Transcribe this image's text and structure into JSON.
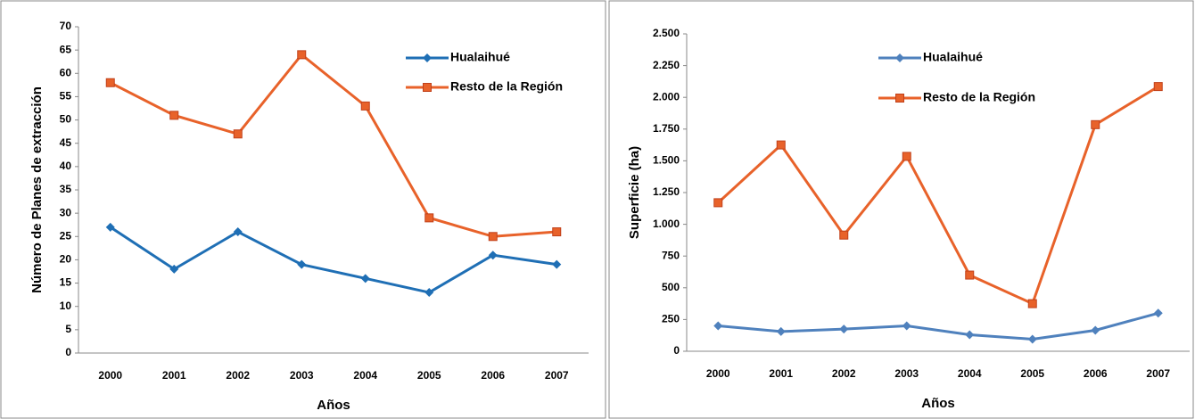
{
  "chart_data": [
    {
      "type": "line",
      "ylabel": "Número de Planes de extracción",
      "xlabel": "Años",
      "categories": [
        "2000",
        "2001",
        "2002",
        "2003",
        "2004",
        "2005",
        "2006",
        "2007"
      ],
      "series": [
        {
          "name": "Hualaihué",
          "color": "#1f6fb5",
          "marker": "diamond",
          "values": [
            27,
            18,
            26,
            19,
            16,
            13,
            21,
            19
          ]
        },
        {
          "name": "Resto de la Región",
          "color": "#e8622a",
          "marker": "square",
          "values": [
            58,
            51,
            47,
            64,
            53,
            29,
            25,
            26
          ]
        }
      ],
      "ylim": [
        0,
        70
      ],
      "yticks": [
        0,
        5,
        10,
        15,
        20,
        25,
        30,
        35,
        40,
        45,
        50,
        55,
        60,
        65,
        70
      ]
    },
    {
      "type": "line",
      "ylabel": "Superficie (ha)",
      "xlabel": "Años",
      "categories": [
        "2000",
        "2001",
        "2002",
        "2003",
        "2004",
        "2005",
        "2006",
        "2007"
      ],
      "series": [
        {
          "name": "Hualaihué",
          "color": "#4f81bd",
          "marker": "diamond",
          "values": [
            200,
            155,
            175,
            200,
            130,
            95,
            165,
            300
          ]
        },
        {
          "name": "Resto de la Región",
          "color": "#e8622a",
          "marker": "square",
          "values": [
            1170,
            1625,
            915,
            1535,
            600,
            375,
            1785,
            2085
          ]
        }
      ],
      "ylim": [
        0,
        2500
      ],
      "yticks": [
        0,
        250,
        500,
        750,
        {
          "value": 1000,
          "label": "1.000"
        },
        {
          "value": 1250,
          "label": "1.250"
        },
        {
          "value": 1500,
          "label": "1.500"
        },
        {
          "value": 1750,
          "label": "1.750"
        },
        {
          "value": 2000,
          "label": "2.000"
        },
        {
          "value": 2250,
          "label": "2.250"
        },
        {
          "value": 2500,
          "label": "2.500"
        }
      ]
    }
  ]
}
